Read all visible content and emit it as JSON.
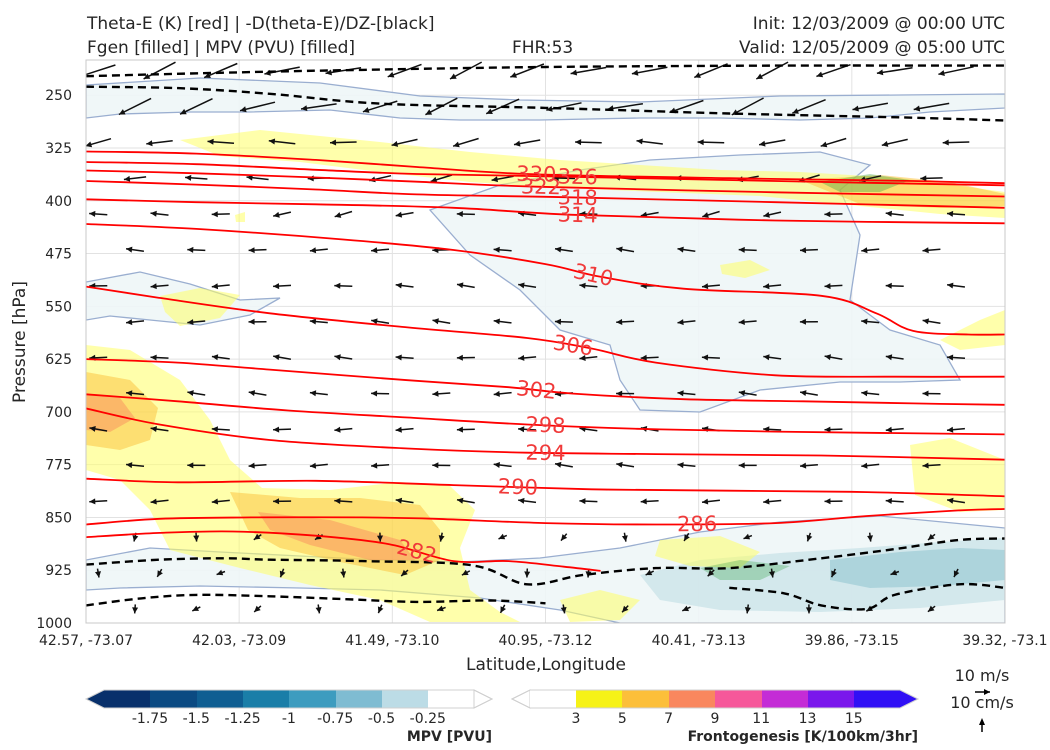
{
  "header": {
    "title_line1": "Theta-E (K) [red] | -D(theta-E)/DZ-[black]",
    "title_line2": "Fgen [filled] | MPV (PVU) [filled]",
    "fhr": "FHR:53",
    "init": "Init: 12/03/2009 @ 00:00 UTC",
    "valid": "Valid: 12/05/2009 @ 05:00 UTC"
  },
  "colors": {
    "theta_e": "#ff0000",
    "theta_e_label": "#f03a3a",
    "ddz": "#000000",
    "mpv_outline": "#9aaed0",
    "mpv_fill": "#eef6f7",
    "fgen_3": "#ffff66",
    "fgen_5": "#fcbf3a",
    "fgen_7": "#f9875e",
    "fgen_11": "#2e9e3e"
  },
  "chart_data": {
    "type": "cross-section",
    "xlabel": "Latitude,Longitude",
    "ylabel": "Pressure [hPa]",
    "x_ticks": [
      "42.57, -73.07",
      "42.03, -73.09",
      "41.49, -73.10",
      "40.95, -73.12",
      "40.41, -73.13",
      "39.86, -73.15",
      "39.32, -73.1"
    ],
    "y_ticks": [
      250,
      325,
      400,
      475,
      550,
      625,
      700,
      775,
      850,
      925,
      1000
    ],
    "ylim": [
      1000,
      200
    ],
    "xlim": [
      0,
      1
    ],
    "grid": true,
    "theta_e_contours": [
      {
        "level": 330,
        "points": [
          [
            0,
            330
          ],
          [
            0.12,
            333
          ],
          [
            0.25,
            342
          ],
          [
            0.36,
            352
          ],
          [
            0.48,
            362
          ],
          [
            0.7,
            368
          ],
          [
            0.9,
            372
          ],
          [
            1,
            375
          ]
        ]
      },
      {
        "level": 326,
        "points": [
          [
            0,
            345
          ],
          [
            0.12,
            348
          ],
          [
            0.25,
            356
          ],
          [
            0.36,
            362
          ],
          [
            0.53,
            366
          ],
          [
            0.75,
            372
          ],
          [
            1,
            378
          ]
        ]
      },
      {
        "level": 322,
        "points": [
          [
            0,
            357
          ],
          [
            0.12,
            361
          ],
          [
            0.25,
            367
          ],
          [
            0.36,
            373
          ],
          [
            0.49,
            380
          ],
          [
            0.75,
            388
          ],
          [
            1,
            394
          ]
        ]
      },
      {
        "level": 318,
        "points": [
          [
            0,
            372
          ],
          [
            0.12,
            377
          ],
          [
            0.25,
            384
          ],
          [
            0.36,
            391
          ],
          [
            0.52,
            395
          ],
          [
            0.75,
            402
          ],
          [
            1,
            410
          ]
        ]
      },
      {
        "level": 314,
        "points": [
          [
            0,
            398
          ],
          [
            0.12,
            402
          ],
          [
            0.25,
            405
          ],
          [
            0.4,
            410
          ],
          [
            0.53,
            420
          ],
          [
            0.75,
            428
          ],
          [
            1,
            432
          ]
        ]
      },
      {
        "level": 310,
        "points": [
          [
            0,
            433
          ],
          [
            0.12,
            440
          ],
          [
            0.28,
            455
          ],
          [
            0.4,
            470
          ],
          [
            0.5,
            490
          ],
          [
            0.56,
            508
          ],
          [
            0.65,
            525
          ],
          [
            0.8,
            535
          ],
          [
            0.86,
            560
          ],
          [
            0.9,
            585
          ],
          [
            0.96,
            590
          ],
          [
            1,
            590
          ]
        ]
      },
      {
        "level": 306,
        "points": [
          [
            0,
            522
          ],
          [
            0.08,
            538
          ],
          [
            0.2,
            560
          ],
          [
            0.35,
            580
          ],
          [
            0.48,
            595
          ],
          [
            0.55,
            610
          ],
          [
            0.62,
            630
          ],
          [
            0.75,
            648
          ],
          [
            0.88,
            650
          ],
          [
            1,
            650
          ]
        ]
      },
      {
        "level": 302,
        "points": [
          [
            0,
            625
          ],
          [
            0.1,
            630
          ],
          [
            0.2,
            640
          ],
          [
            0.35,
            655
          ],
          [
            0.46,
            665
          ],
          [
            0.53,
            674
          ],
          [
            0.65,
            682
          ],
          [
            0.78,
            685
          ],
          [
            0.9,
            688
          ],
          [
            1,
            690
          ]
        ]
      },
      {
        "level": 298,
        "points": [
          [
            0,
            675
          ],
          [
            0.1,
            685
          ],
          [
            0.22,
            698
          ],
          [
            0.35,
            708
          ],
          [
            0.48,
            718
          ],
          [
            0.6,
            724
          ],
          [
            0.75,
            728
          ],
          [
            1,
            732
          ]
        ]
      },
      {
        "level": 294,
        "points": [
          [
            0,
            695
          ],
          [
            0.08,
            718
          ],
          [
            0.2,
            740
          ],
          [
            0.35,
            752
          ],
          [
            0.48,
            758
          ],
          [
            0.62,
            760
          ],
          [
            0.8,
            762
          ],
          [
            1,
            768
          ]
        ]
      },
      {
        "level": 290,
        "points": [
          [
            0,
            795
          ],
          [
            0.1,
            800
          ],
          [
            0.25,
            798
          ],
          [
            0.4,
            804
          ],
          [
            0.55,
            810
          ],
          [
            0.7,
            812
          ],
          [
            0.85,
            814
          ],
          [
            1,
            820
          ]
        ]
      },
      {
        "level": 286,
        "points": [
          [
            0,
            860
          ],
          [
            0.08,
            852
          ],
          [
            0.18,
            850
          ],
          [
            0.3,
            850
          ],
          [
            0.38,
            852
          ],
          [
            0.5,
            858
          ],
          [
            0.62,
            860
          ],
          [
            0.75,
            858
          ],
          [
            0.85,
            848
          ],
          [
            0.95,
            840
          ],
          [
            1,
            838
          ]
        ]
      },
      {
        "level": 282,
        "points": [
          [
            0,
            878
          ],
          [
            0.08,
            872
          ],
          [
            0.16,
            870
          ],
          [
            0.25,
            876
          ],
          [
            0.33,
            888
          ],
          [
            0.4,
            912
          ],
          [
            0.46,
            912
          ],
          [
            0.52,
            920
          ],
          [
            0.56,
            926
          ]
        ]
      }
    ],
    "ddz_contours": [
      [
        [
          0,
          223
        ],
        [
          0.15,
          218
        ],
        [
          0.3,
          214
        ],
        [
          0.5,
          210
        ],
        [
          0.75,
          208
        ],
        [
          1,
          208
        ]
      ],
      [
        [
          0,
          238
        ],
        [
          0.1,
          240
        ],
        [
          0.2,
          248
        ],
        [
          0.32,
          262
        ],
        [
          0.5,
          268
        ],
        [
          0.7,
          276
        ],
        [
          0.9,
          282
        ],
        [
          1,
          286
        ]
      ],
      [
        [
          0,
          917
        ],
        [
          0.08,
          910
        ],
        [
          0.15,
          908
        ],
        [
          0.2,
          910
        ],
        [
          0.3,
          912
        ],
        [
          0.42,
          918
        ],
        [
          0.48,
          945
        ],
        [
          0.54,
          932
        ],
        [
          0.62,
          922
        ],
        [
          0.7,
          922
        ],
        [
          0.8,
          908
        ],
        [
          0.88,
          895
        ],
        [
          0.95,
          882
        ],
        [
          1,
          880
        ]
      ],
      [
        [
          0,
          975
        ],
        [
          0.06,
          965
        ],
        [
          0.12,
          960
        ],
        [
          0.2,
          962
        ],
        [
          0.28,
          966
        ],
        [
          0.36,
          970
        ],
        [
          0.44,
          968
        ],
        [
          0.5,
          972
        ]
      ],
      [
        [
          0.7,
          950
        ],
        [
          0.76,
          958
        ],
        [
          0.8,
          975
        ],
        [
          0.85,
          980
        ],
        [
          0.88,
          960
        ],
        [
          0.95,
          945
        ],
        [
          1,
          950
        ]
      ]
    ],
    "mpv": {
      "label": "MPV [PVU]",
      "levels": [
        -1.75,
        -1.5,
        -1.25,
        -1.0,
        -0.75,
        -0.5,
        -0.25
      ]
    },
    "fgen": {
      "label": "Frontogenesis [K/100km/3hr]",
      "levels": [
        3,
        5,
        7,
        9,
        11,
        13,
        15
      ]
    },
    "wind_key": {
      "horizontal": "10 m/s",
      "vertical": "10 cm/s"
    }
  }
}
